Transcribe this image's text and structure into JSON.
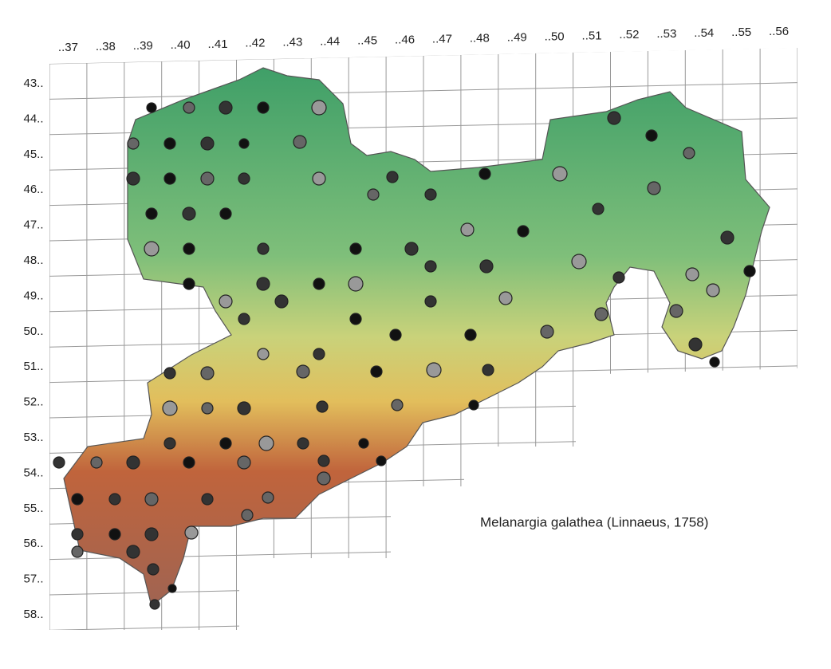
{
  "map": {
    "column_labels": [
      "..37",
      "..38",
      "..39",
      "..40",
      "..41",
      "..42",
      "..43",
      "..44",
      "..45",
      "..46",
      "..47",
      "..48",
      "..49",
      "..50",
      "..51",
      "..52",
      "..53",
      "..54",
      "..55",
      "..56"
    ],
    "row_labels": [
      "43..",
      "44..",
      "45..",
      "46..",
      "47..",
      "48..",
      "49..",
      "50..",
      "51..",
      "52..",
      "53..",
      "54..",
      "55..",
      "56..",
      "57..",
      "58.."
    ],
    "caption": "Melanargia galathea (Linnaeus, 1758)"
  }
}
